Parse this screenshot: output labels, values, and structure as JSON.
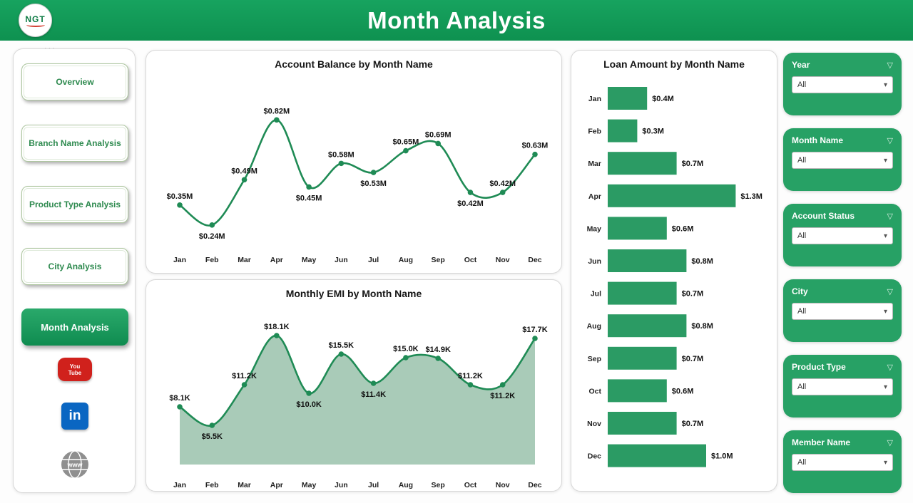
{
  "header": {
    "title": "Month Analysis",
    "logo_text": "NGT"
  },
  "more_options": "...",
  "sidebar": {
    "items": [
      {
        "label": "Overview"
      },
      {
        "label": "Branch Name Analysis"
      },
      {
        "label": "Product Type Analysis"
      },
      {
        "label": "City Analysis"
      },
      {
        "label": "Month Analysis"
      }
    ],
    "social": [
      {
        "name": "youtube",
        "line1": "You",
        "line2": "Tube"
      },
      {
        "name": "linkedin",
        "label": "in"
      },
      {
        "name": "website",
        "label": "www"
      }
    ]
  },
  "filters": [
    {
      "label": "Year",
      "value": "All"
    },
    {
      "label": "Month Name",
      "value": "All"
    },
    {
      "label": "Account Status",
      "value": "All"
    },
    {
      "label": "City",
      "value": "All"
    },
    {
      "label": "Product Type",
      "value": "All"
    },
    {
      "label": "Member Name",
      "value": "All"
    }
  ],
  "chart_data": [
    {
      "type": "line",
      "title": "Account Balance by Month Name",
      "xlabel": "Month Name",
      "ylabel": "Account Balance",
      "categories": [
        "Jan",
        "Feb",
        "Mar",
        "Apr",
        "May",
        "Jun",
        "Jul",
        "Aug",
        "Sep",
        "Oct",
        "Nov",
        "Dec"
      ],
      "values": [
        0.35,
        0.24,
        0.49,
        0.82,
        0.45,
        0.58,
        0.53,
        0.65,
        0.69,
        0.42,
        0.42,
        0.63
      ],
      "labels": [
        "$0.35M",
        "$0.24M",
        "$0.49M",
        "$0.82M",
        "$0.45M",
        "$0.58M",
        "$0.53M",
        "$0.65M",
        "$0.69M",
        "$0.42M",
        "$0.42M",
        "$0.63M"
      ],
      "label_side": [
        "above",
        "below",
        "above",
        "above",
        "below",
        "above",
        "below",
        "above",
        "above",
        "below",
        "above",
        "above"
      ],
      "ylim": [
        0.2,
        0.9
      ],
      "grid": false,
      "legend": false
    },
    {
      "type": "area",
      "title": "Monthly EMI by Month Name",
      "xlabel": "Month Name",
      "ylabel": "Monthly EMI",
      "categories": [
        "Jan",
        "Feb",
        "Mar",
        "Apr",
        "May",
        "Jun",
        "Jul",
        "Aug",
        "Sep",
        "Oct",
        "Nov",
        "Dec"
      ],
      "values": [
        8.1,
        5.5,
        11.2,
        18.1,
        10.0,
        15.5,
        11.4,
        15.0,
        14.9,
        11.2,
        11.2,
        17.7
      ],
      "labels": [
        "$8.1K",
        "$5.5K",
        "$11.2K",
        "$18.1K",
        "$10.0K",
        "$15.5K",
        "$11.4K",
        "$15.0K",
        "$14.9K",
        "$11.2K",
        "$11.2K",
        "$17.7K"
      ],
      "label_side": [
        "above",
        "below",
        "above",
        "above",
        "below",
        "above",
        "below",
        "above",
        "above",
        "above",
        "below",
        "above"
      ],
      "ylim": [
        0,
        20
      ],
      "grid": false,
      "legend": false
    },
    {
      "type": "bar",
      "orientation": "horizontal",
      "title": "Loan Amount by Month Name",
      "xlabel": "Loan Amount",
      "ylabel": "Month Name",
      "categories": [
        "Jan",
        "Feb",
        "Mar",
        "Apr",
        "May",
        "Jun",
        "Jul",
        "Aug",
        "Sep",
        "Oct",
        "Nov",
        "Dec"
      ],
      "values": [
        0.4,
        0.3,
        0.7,
        1.3,
        0.6,
        0.8,
        0.7,
        0.8,
        0.7,
        0.6,
        0.7,
        1.0
      ],
      "labels": [
        "$0.4M",
        "$0.3M",
        "$0.7M",
        "$1.3M",
        "$0.6M",
        "$0.8M",
        "$0.7M",
        "$0.8M",
        "$0.7M",
        "$0.6M",
        "$0.7M",
        "$1.0M"
      ],
      "xlim": [
        0,
        1.5
      ],
      "grid": false,
      "legend": false
    }
  ],
  "colors": {
    "header_green": "#119a57",
    "filter_green": "#27a165",
    "bar": "#2b9b64",
    "line": "#1f8b55",
    "area_fill": "#a9cbb8",
    "youtube_red": "#d0211c",
    "linkedin_blue": "#0a66c2",
    "globe_gray": "#8f8f8f"
  }
}
